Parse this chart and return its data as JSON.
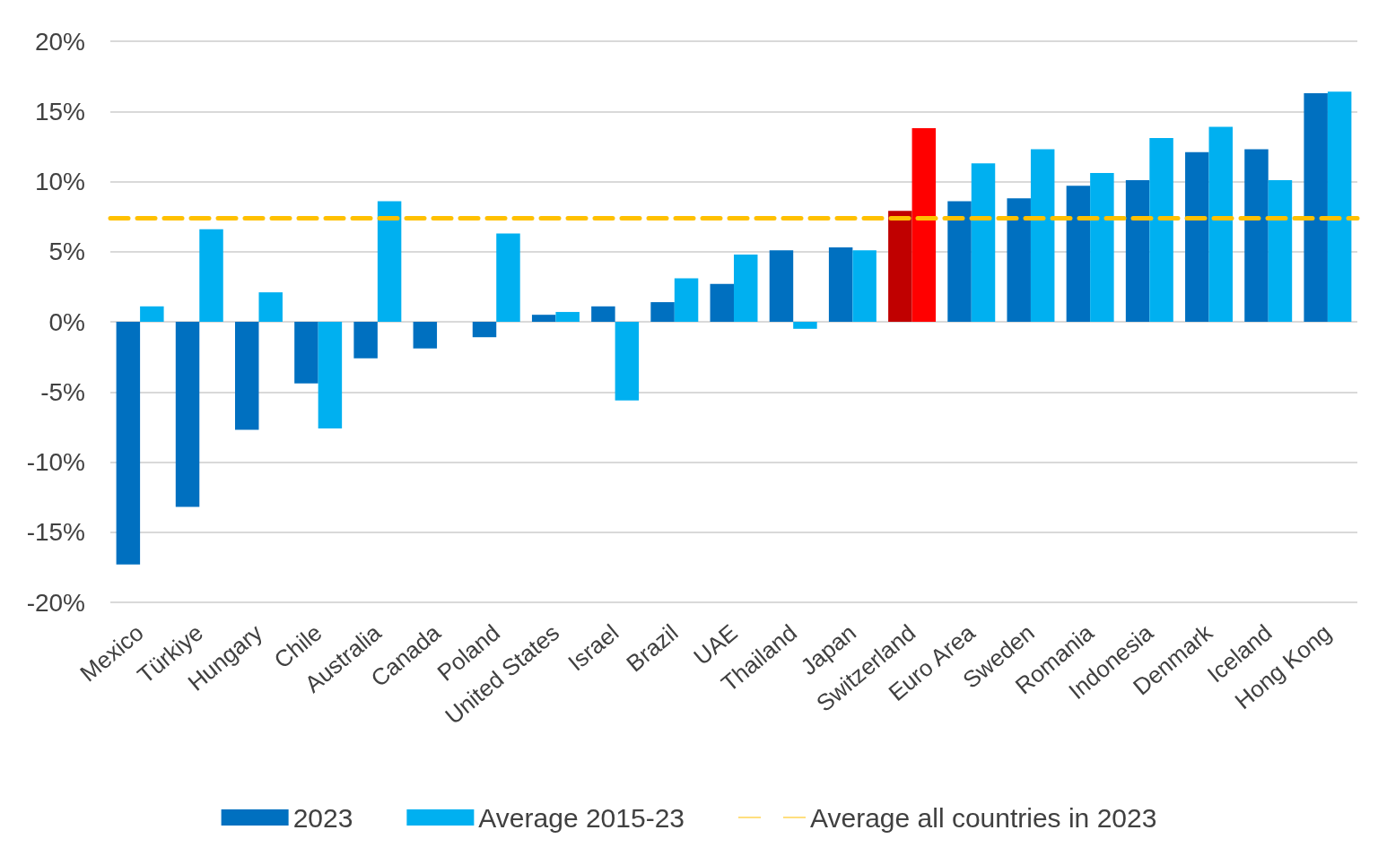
{
  "chart_data": {
    "type": "bar",
    "categories": [
      "Mexico",
      "Türkiye",
      "Hungary",
      "Chile",
      "Australia",
      "Canada",
      "Poland",
      "United States",
      "Israel",
      "Brazil",
      "UAE",
      "Thailand",
      "Japan",
      "Switzerland",
      "Euro Area",
      "Sweden",
      "Romania",
      "Indonesia",
      "Denmark",
      "Iceland",
      "Hong Kong"
    ],
    "series": [
      {
        "name": "2023",
        "color": "#0070c0",
        "colors": [
          "#0070c0",
          "#0070c0",
          "#0070c0",
          "#0070c0",
          "#0070c0",
          "#0070c0",
          "#0070c0",
          "#0070c0",
          "#0070c0",
          "#0070c0",
          "#0070c0",
          "#0070c0",
          "#0070c0",
          "#c00000",
          "#0070c0",
          "#0070c0",
          "#0070c0",
          "#0070c0",
          "#0070c0",
          "#0070c0",
          "#0070c0"
        ],
        "values": [
          -17.3,
          -13.2,
          -7.7,
          -4.4,
          -2.6,
          -1.9,
          -1.1,
          0.5,
          1.1,
          1.4,
          2.7,
          5.1,
          5.3,
          7.9,
          8.6,
          8.8,
          9.7,
          10.1,
          12.1,
          12.3,
          16.3
        ]
      },
      {
        "name": "Average 2015-23",
        "color": "#00b0f0",
        "colors": [
          "#00b0f0",
          "#00b0f0",
          "#00b0f0",
          "#00b0f0",
          "#00b0f0",
          "#00b0f0",
          "#00b0f0",
          "#00b0f0",
          "#00b0f0",
          "#00b0f0",
          "#00b0f0",
          "#00b0f0",
          "#00b0f0",
          "#ff0000",
          "#00b0f0",
          "#00b0f0",
          "#00b0f0",
          "#00b0f0",
          "#00b0f0",
          "#00b0f0",
          "#00b0f0"
        ],
        "values": [
          1.1,
          6.6,
          2.1,
          -7.6,
          8.6,
          0.0,
          6.3,
          0.7,
          -5.6,
          3.1,
          4.8,
          -0.5,
          5.1,
          13.8,
          11.3,
          12.3,
          10.6,
          13.1,
          13.9,
          10.1,
          16.4
        ]
      }
    ],
    "ref_lines": [
      {
        "axis": "y",
        "value": 7.4,
        "label": "Average all countries in 2023",
        "color": "#ffc000",
        "line_style": "dashed"
      }
    ],
    "ylim": [
      -20,
      20
    ],
    "yticks": [
      {
        "value": -20,
        "label": "-20%"
      },
      {
        "value": -15,
        "label": "-15%"
      },
      {
        "value": -10,
        "label": "-10%"
      },
      {
        "value": -5,
        "label": "-5%"
      },
      {
        "value": 0,
        "label": "0%"
      },
      {
        "value": 5,
        "label": "5%"
      },
      {
        "value": 10,
        "label": "10%"
      },
      {
        "value": 15,
        "label": "15%"
      },
      {
        "value": 20,
        "label": "20%"
      }
    ],
    "grid": "y",
    "legend": "bottom"
  }
}
